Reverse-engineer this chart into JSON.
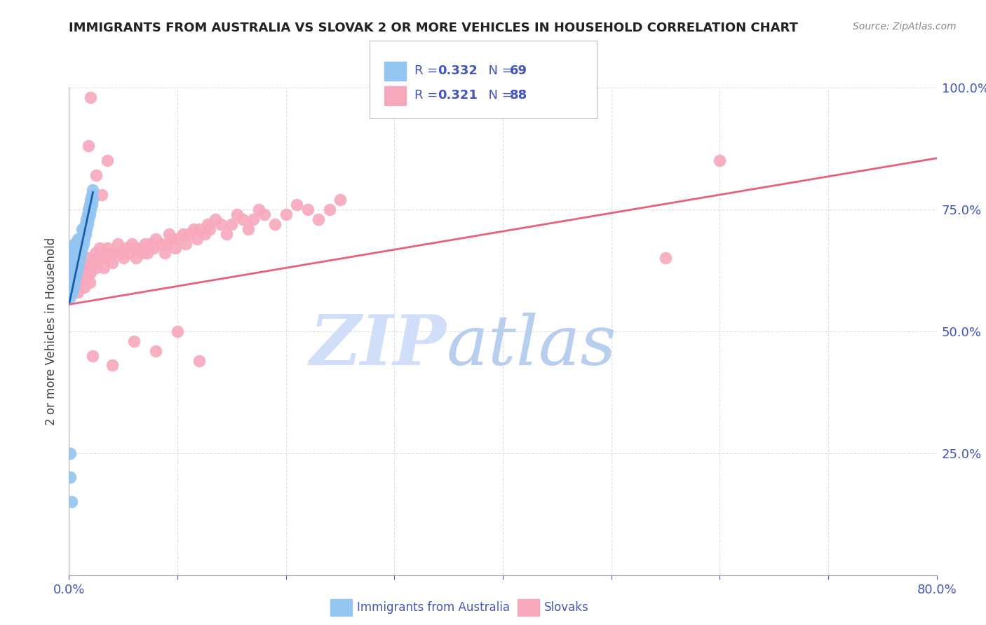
{
  "title": "IMMIGRANTS FROM AUSTRALIA VS SLOVAK 2 OR MORE VEHICLES IN HOUSEHOLD CORRELATION CHART",
  "source": "Source: ZipAtlas.com",
  "ylabel": "2 or more Vehicles in Household",
  "xlim": [
    0.0,
    0.8
  ],
  "ylim": [
    0.0,
    1.0
  ],
  "blue_color": "#92C5F0",
  "pink_color": "#F7A8BC",
  "blue_line_color": "#1A5DAB",
  "pink_line_color": "#E8607A",
  "axis_color": "#4455BB",
  "grid_color": "#DDDDDD",
  "title_color": "#222222",
  "label_color": "#444444",
  "background_color": "#FFFFFF",
  "blue_r": 0.332,
  "blue_n": 69,
  "pink_r": 0.321,
  "pink_n": 88,
  "legend_blue_label": "Immigrants from Australia",
  "legend_pink_label": "Slovaks",
  "watermark_zip_color": "#D0DEFA",
  "watermark_atlas_color": "#B8CEEE",
  "blue_x": [
    0.001,
    0.001,
    0.001,
    0.001,
    0.002,
    0.002,
    0.002,
    0.002,
    0.002,
    0.003,
    0.003,
    0.003,
    0.003,
    0.003,
    0.004,
    0.004,
    0.004,
    0.004,
    0.005,
    0.005,
    0.005,
    0.005,
    0.005,
    0.006,
    0.006,
    0.006,
    0.006,
    0.007,
    0.007,
    0.007,
    0.007,
    0.008,
    0.008,
    0.008,
    0.008,
    0.009,
    0.009,
    0.009,
    0.01,
    0.01,
    0.01,
    0.011,
    0.011,
    0.012,
    0.012,
    0.012,
    0.013,
    0.013,
    0.014,
    0.014,
    0.015,
    0.015,
    0.016,
    0.016,
    0.017,
    0.017,
    0.018,
    0.018,
    0.019,
    0.019,
    0.02,
    0.02,
    0.021,
    0.021,
    0.022,
    0.022,
    0.001,
    0.001,
    0.002
  ],
  "blue_y": [
    0.57,
    0.59,
    0.61,
    0.62,
    0.58,
    0.6,
    0.62,
    0.64,
    0.65,
    0.58,
    0.6,
    0.62,
    0.64,
    0.67,
    0.59,
    0.61,
    0.63,
    0.66,
    0.6,
    0.62,
    0.64,
    0.66,
    0.68,
    0.61,
    0.63,
    0.65,
    0.67,
    0.62,
    0.64,
    0.66,
    0.68,
    0.63,
    0.65,
    0.67,
    0.69,
    0.64,
    0.66,
    0.68,
    0.65,
    0.67,
    0.69,
    0.66,
    0.68,
    0.67,
    0.69,
    0.71,
    0.68,
    0.7,
    0.69,
    0.71,
    0.7,
    0.72,
    0.71,
    0.73,
    0.72,
    0.74,
    0.73,
    0.75,
    0.74,
    0.76,
    0.75,
    0.77,
    0.76,
    0.78,
    0.77,
    0.79,
    0.2,
    0.25,
    0.15
  ],
  "pink_x": [
    0.005,
    0.007,
    0.008,
    0.009,
    0.01,
    0.011,
    0.012,
    0.013,
    0.014,
    0.015,
    0.016,
    0.017,
    0.018,
    0.019,
    0.02,
    0.02,
    0.022,
    0.024,
    0.025,
    0.026,
    0.028,
    0.03,
    0.032,
    0.034,
    0.035,
    0.038,
    0.04,
    0.042,
    0.045,
    0.048,
    0.05,
    0.052,
    0.055,
    0.058,
    0.06,
    0.062,
    0.065,
    0.068,
    0.07,
    0.072,
    0.075,
    0.078,
    0.08,
    0.085,
    0.088,
    0.09,
    0.092,
    0.095,
    0.098,
    0.1,
    0.105,
    0.108,
    0.11,
    0.115,
    0.118,
    0.12,
    0.125,
    0.128,
    0.13,
    0.135,
    0.14,
    0.145,
    0.15,
    0.155,
    0.16,
    0.165,
    0.17,
    0.175,
    0.18,
    0.19,
    0.2,
    0.21,
    0.22,
    0.23,
    0.24,
    0.25,
    0.018,
    0.025,
    0.03,
    0.035,
    0.55,
    0.6,
    0.022,
    0.04,
    0.06,
    0.08,
    0.1,
    0.12
  ],
  "pink_y": [
    0.62,
    0.6,
    0.58,
    0.6,
    0.62,
    0.64,
    0.61,
    0.63,
    0.59,
    0.61,
    0.63,
    0.65,
    0.62,
    0.6,
    0.62,
    0.98,
    0.64,
    0.66,
    0.63,
    0.65,
    0.67,
    0.65,
    0.63,
    0.65,
    0.67,
    0.66,
    0.64,
    0.66,
    0.68,
    0.66,
    0.65,
    0.67,
    0.66,
    0.68,
    0.67,
    0.65,
    0.67,
    0.66,
    0.68,
    0.66,
    0.68,
    0.67,
    0.69,
    0.68,
    0.66,
    0.68,
    0.7,
    0.69,
    0.67,
    0.69,
    0.7,
    0.68,
    0.7,
    0.71,
    0.69,
    0.71,
    0.7,
    0.72,
    0.71,
    0.73,
    0.72,
    0.7,
    0.72,
    0.74,
    0.73,
    0.71,
    0.73,
    0.75,
    0.74,
    0.72,
    0.74,
    0.76,
    0.75,
    0.73,
    0.75,
    0.77,
    0.88,
    0.82,
    0.78,
    0.85,
    0.65,
    0.85,
    0.45,
    0.43,
    0.48,
    0.46,
    0.5,
    0.44
  ],
  "blue_trend_x": [
    0.0,
    0.022
  ],
  "blue_trend_y": [
    0.555,
    0.785
  ],
  "pink_trend_x": [
    0.0,
    0.8
  ],
  "pink_trend_y": [
    0.555,
    0.855
  ]
}
